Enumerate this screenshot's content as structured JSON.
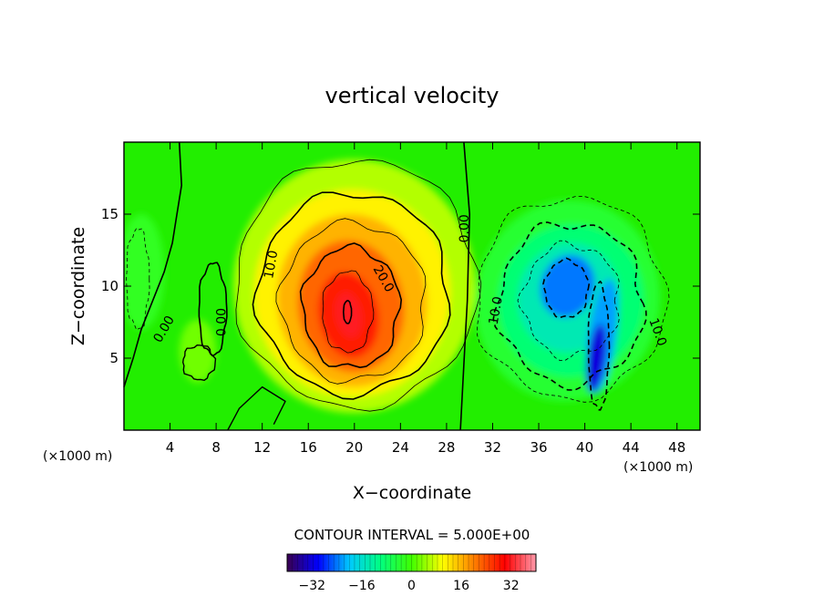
{
  "chart_data": {
    "type": "heatmap",
    "title": "vertical velocity",
    "xlabel": "X−coordinate",
    "ylabel": "Z−coordinate",
    "x_unit": "(×1000 m)",
    "y_unit": "(×1000 m)",
    "xlim": [
      0,
      50
    ],
    "ylim": [
      0,
      20
    ],
    "x_ticks": [
      4,
      8,
      12,
      16,
      20,
      24,
      28,
      32,
      36,
      40,
      44,
      48
    ],
    "y_ticks": [
      5,
      10,
      15
    ],
    "contour_interval_text": "CONTOUR INTERVAL = 5.000E+00",
    "colorbar": {
      "min": -40,
      "max": 40,
      "ticks": [
        -32,
        -16,
        0,
        16,
        32
      ],
      "tick_labels": [
        "−32",
        "−16",
        "0",
        "16",
        "32"
      ],
      "colors": [
        "#3a0050",
        "#0000ff",
        "#00c8ff",
        "#00ff80",
        "#40ff00",
        "#ffff00",
        "#ff8000",
        "#ff0000",
        "#ff99aa"
      ]
    },
    "features": [
      {
        "kind": "updraft",
        "x": 19.5,
        "z": 8,
        "peak": 32
      },
      {
        "kind": "downdraft",
        "x": 38.5,
        "z": 10,
        "peak": -24
      },
      {
        "kind": "downdraft",
        "x": 41.5,
        "z": 5,
        "peak": -32
      }
    ],
    "contour_labels": [
      {
        "text": "0.00",
        "x": 3.5,
        "z": 7
      },
      {
        "text": "0.00",
        "x": 8.5,
        "z": 7.5
      },
      {
        "text": "10.0",
        "x": 12.8,
        "z": 11.5
      },
      {
        "text": "20.0",
        "x": 22.5,
        "z": 10.5
      },
      {
        "text": "0.00",
        "x": 29.6,
        "z": 14
      },
      {
        "text": "10.0",
        "x": 32.3,
        "z": 8.3
      },
      {
        "text": "10.0",
        "x": 46.3,
        "z": 6.8
      }
    ]
  }
}
